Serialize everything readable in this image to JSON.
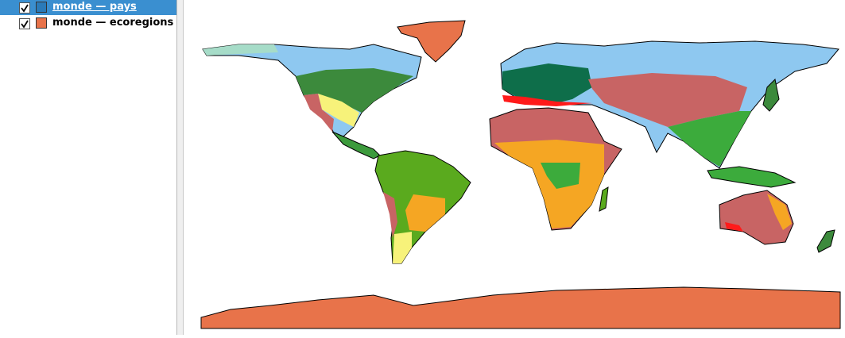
{
  "layers": [
    {
      "name": "monde — pays",
      "checked": true,
      "selected": true,
      "swatch": "#2a7ab8"
    },
    {
      "name": "monde — ecoregions",
      "checked": true,
      "selected": false,
      "swatch": "#e8734a"
    }
  ]
}
